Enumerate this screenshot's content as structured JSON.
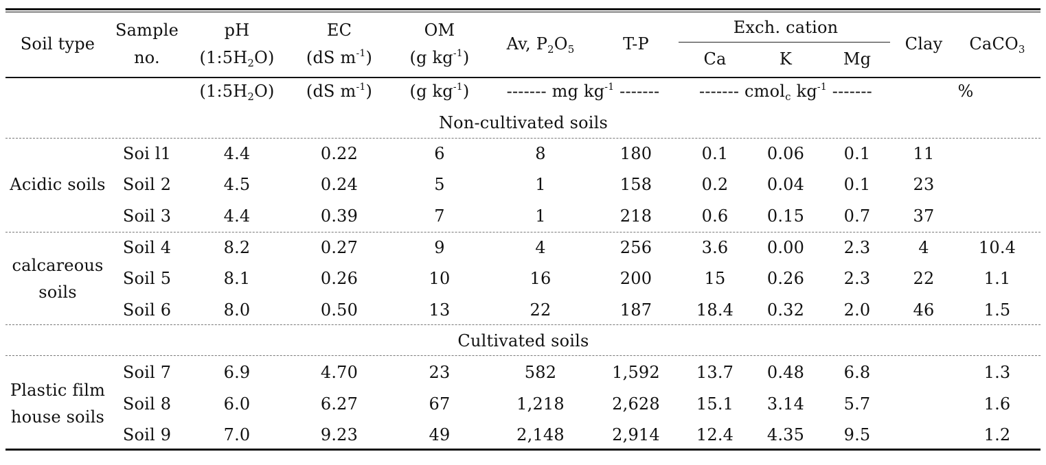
{
  "header": {
    "soil_type": "Soil  type",
    "sample_l1": "Sample",
    "sample_l2": "no.",
    "ph_l1": "pH",
    "ph_l2a": "(1:5H",
    "ph_l2sub": "2",
    "ph_l2b": "O)",
    "ec_l1": "EC",
    "ec_l2a": "(dS  m",
    "ec_l2sup": "-1",
    "ec_l2b": ")",
    "om_l1": "OM",
    "om_l2a": "(g  kg",
    "om_l2sup": "-1",
    "om_l2b": ")",
    "avp_a": "Av,  P",
    "avp_sub1": "2",
    "avp_b": "O",
    "avp_sub2": "5",
    "tp": "T-P",
    "exch": "Exch.  cation",
    "ca": "Ca",
    "k": "K",
    "mg": "Mg",
    "clay": "Clay",
    "caco3_a": "CaCO",
    "caco3_sub": "3"
  },
  "units": {
    "ph_a": "(1:5H",
    "ph_sub": "2",
    "ph_b": "O)",
    "ec_a": "(dS  m",
    "ec_sup": "-1",
    "ec_b": ")",
    "om_a": "(g  kg",
    "om_sup": "-1",
    "om_b": ")",
    "mg_a": "-------  mg  kg",
    "mg_sup": "-1",
    "mg_b": "  -------",
    "cmol_a": "-------  cmol",
    "cmol_sub": "c",
    "cmol_b": "  kg",
    "cmol_sup": "-1",
    "cmol_c": "  -------",
    "percent": "%"
  },
  "sections": [
    {
      "title": "Non-cultivated soils",
      "groups": [
        {
          "label_l1": "Acidic  soils",
          "label_l2": "",
          "rows": [
            [
              "Soi  l1",
              "4.4",
              "0.22",
              "6",
              "8",
              "180",
              "0.1",
              "0.06",
              "0.1",
              "11",
              ""
            ],
            [
              "Soil  2",
              "4.5",
              "0.24",
              "5",
              "1",
              "158",
              "0.2",
              "0.04",
              "0.1",
              "23",
              ""
            ],
            [
              "Soil  3",
              "4.4",
              "0.39",
              "7",
              "1",
              "218",
              "0.6",
              "0.15",
              "0.7",
              "37",
              ""
            ]
          ]
        },
        {
          "label_l1": "calcareous",
          "label_l2": "soils",
          "rows": [
            [
              "Soil  4",
              "8.2",
              "0.27",
              "9",
              "4",
              "256",
              "3.6",
              "0.00",
              "2.3",
              "4",
              "10.4"
            ],
            [
              "Soil  5",
              "8.1",
              "0.26",
              "10",
              "16",
              "200",
              "15",
              "0.26",
              "2.3",
              "22",
              "1.1"
            ],
            [
              "Soil  6",
              "8.0",
              "0.50",
              "13",
              "22",
              "187",
              "18.4",
              "0.32",
              "2.0",
              "46",
              "1.5"
            ]
          ]
        }
      ]
    },
    {
      "title": "Cultivated  soils",
      "groups": [
        {
          "label_l1": "Plastic  film",
          "label_l2": "house  soils",
          "rows": [
            [
              "Soil  7",
              "6.9",
              "4.70",
              "23",
              "582",
              "1,592",
              "13.7",
              "0.48",
              "6.8",
              "",
              "1.3"
            ],
            [
              "Soil  8",
              "6.0",
              "6.27",
              "67",
              "1,218",
              "2,628",
              "15.1",
              "3.14",
              "5.7",
              "",
              "1.6"
            ],
            [
              "Soil  9",
              "7.0",
              "9.23",
              "49",
              "2,148",
              "2,914",
              "12.4",
              "4.35",
              "9.5",
              "",
              "1.2"
            ]
          ]
        }
      ]
    }
  ]
}
